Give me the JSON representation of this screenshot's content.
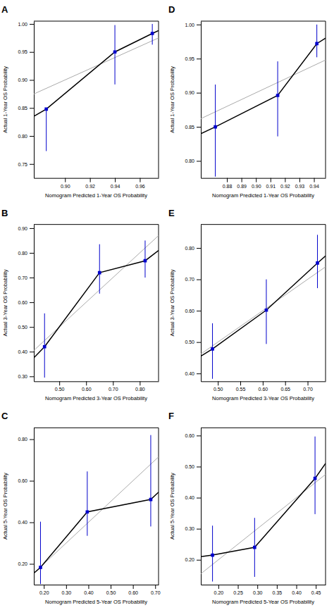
{
  "chart_data": [
    {
      "type": "line",
      "title": "A",
      "xlabel": "Nomogram Predicted 1-Year OS Probability",
      "ylabel": "Actual 1-Year OS Probability",
      "grid": false,
      "xlim": [
        0.875,
        0.975
      ],
      "ylim": [
        0.725,
        1.005
      ],
      "xticks": [
        {
          "value": 0.9,
          "label": "0.90"
        },
        {
          "value": 0.92,
          "label": "0.92"
        },
        {
          "value": 0.94,
          "label": "0.94"
        },
        {
          "value": 0.96,
          "label": "0.96"
        }
      ],
      "yticks": [
        {
          "value": 0.75,
          "label": "0.75"
        },
        {
          "value": 0.8,
          "label": "0.80"
        },
        {
          "value": 0.85,
          "label": "0.85"
        },
        {
          "value": 0.9,
          "label": "0.90"
        },
        {
          "value": 0.95,
          "label": "0.95"
        },
        {
          "value": 1.0,
          "label": "1.00"
        }
      ],
      "series": [
        {
          "type": "line",
          "color": "#AAAAAA",
          "x": [
            0.875,
            0.975
          ],
          "values": [
            0.875,
            0.975
          ]
        },
        {
          "type": "line",
          "color": "#000000",
          "x": [
            0.875,
            0.885,
            0.94,
            0.97,
            0.975
          ],
          "values": [
            0.835,
            0.848,
            0.95,
            0.983,
            0.988
          ]
        },
        {
          "type": "scatter",
          "color": "#0000CC",
          "marker": "square",
          "x": [
            0.885,
            0.94,
            0.97
          ],
          "values": [
            0.848,
            0.95,
            0.983
          ],
          "err_lo": [
            0.075,
            0.058,
            0.02
          ],
          "err_hi": [
            0.0,
            0.048,
            0.017
          ]
        }
      ]
    },
    {
      "type": "line",
      "title": "B",
      "xlabel": "Nomogram Predicted 3-Year OS Probability",
      "ylabel": "Actual 3-Year OS Probability",
      "grid": false,
      "xlim": [
        0.405,
        0.87
      ],
      "ylim": [
        0.28,
        0.915
      ],
      "xticks": [
        {
          "value": 0.5,
          "label": "0.50"
        },
        {
          "value": 0.6,
          "label": "0.60"
        },
        {
          "value": 0.7,
          "label": "0.70"
        },
        {
          "value": 0.8,
          "label": "0.80"
        }
      ],
      "yticks": [
        {
          "value": 0.3,
          "label": "0.30"
        },
        {
          "value": 0.4,
          "label": "0.40"
        },
        {
          "value": 0.5,
          "label": "0.50"
        },
        {
          "value": 0.6,
          "label": "0.60"
        },
        {
          "value": 0.7,
          "label": "0.70"
        },
        {
          "value": 0.8,
          "label": "0.80"
        },
        {
          "value": 0.9,
          "label": "0.90"
        }
      ],
      "series": [
        {
          "type": "line",
          "color": "#AAAAAA",
          "x": [
            0.405,
            0.87
          ],
          "values": [
            0.405,
            0.87
          ]
        },
        {
          "type": "line",
          "color": "#000000",
          "x": [
            0.405,
            0.445,
            0.65,
            0.82,
            0.87
          ],
          "values": [
            0.375,
            0.42,
            0.72,
            0.768,
            0.81
          ]
        },
        {
          "type": "scatter",
          "color": "#0000CC",
          "marker": "square",
          "x": [
            0.445,
            0.65,
            0.82
          ],
          "values": [
            0.42,
            0.72,
            0.768
          ],
          "err_lo": [
            0.125,
            0.085,
            0.068
          ],
          "err_hi": [
            0.135,
            0.115,
            0.082
          ]
        }
      ]
    },
    {
      "type": "line",
      "title": "C",
      "xlabel": "Nomogram Predicted 5-Year OS Probability",
      "ylabel": "Actual 5-Year OS Probability",
      "grid": false,
      "xlim": [
        0.155,
        0.715
      ],
      "ylim": [
        0.1,
        0.855
      ],
      "xticks": [
        {
          "value": 0.2,
          "label": "0.20"
        },
        {
          "value": 0.3,
          "label": "0.30"
        },
        {
          "value": 0.4,
          "label": "0.40"
        },
        {
          "value": 0.5,
          "label": "0.50"
        },
        {
          "value": 0.6,
          "label": "0.60"
        },
        {
          "value": 0.7,
          "label": "0.70"
        }
      ],
      "yticks": [
        {
          "value": 0.2,
          "label": "0.20"
        },
        {
          "value": 0.4,
          "label": "0.40"
        },
        {
          "value": 0.6,
          "label": "0.60"
        },
        {
          "value": 0.8,
          "label": "0.80"
        }
      ],
      "series": [
        {
          "type": "line",
          "color": "#AAAAAA",
          "x": [
            0.155,
            0.715
          ],
          "values": [
            0.155,
            0.715
          ]
        },
        {
          "type": "line",
          "color": "#000000",
          "x": [
            0.155,
            0.185,
            0.395,
            0.68,
            0.715
          ],
          "values": [
            0.155,
            0.183,
            0.45,
            0.51,
            0.545
          ]
        },
        {
          "type": "scatter",
          "color": "#0000CC",
          "marker": "square",
          "x": [
            0.185,
            0.395,
            0.68
          ],
          "values": [
            0.183,
            0.45,
            0.51
          ],
          "err_lo": [
            0.08,
            0.115,
            0.13
          ],
          "err_hi": [
            0.22,
            0.195,
            0.31
          ]
        }
      ]
    },
    {
      "type": "line",
      "title": "D",
      "xlabel": "Nomogram Predicted 1-Year OS Probability",
      "ylabel": "Actual 1-Year OS Probability",
      "grid": false,
      "xlim": [
        0.862,
        0.948
      ],
      "ylim": [
        0.775,
        1.005
      ],
      "xticks": [
        {
          "value": 0.88,
          "label": "0.88"
        },
        {
          "value": 0.89,
          "label": "0.89"
        },
        {
          "value": 0.9,
          "label": "0.90"
        },
        {
          "value": 0.91,
          "label": "0.91"
        },
        {
          "value": 0.92,
          "label": "0.92"
        },
        {
          "value": 0.93,
          "label": "0.93"
        },
        {
          "value": 0.94,
          "label": "0.94"
        }
      ],
      "yticks": [
        {
          "value": 0.8,
          "label": "0.80"
        },
        {
          "value": 0.85,
          "label": "0.85"
        },
        {
          "value": 0.9,
          "label": "0.90"
        },
        {
          "value": 0.95,
          "label": "0.95"
        },
        {
          "value": 1.0,
          "label": "1.00"
        }
      ],
      "series": [
        {
          "type": "line",
          "color": "#AAAAAA",
          "x": [
            0.862,
            0.948
          ],
          "values": [
            0.862,
            0.948
          ]
        },
        {
          "type": "line",
          "color": "#000000",
          "x": [
            0.862,
            0.872,
            0.915,
            0.942,
            0.948
          ],
          "values": [
            0.84,
            0.85,
            0.896,
            0.972,
            0.98
          ]
        },
        {
          "type": "scatter",
          "color": "#0000CC",
          "marker": "square",
          "x": [
            0.872,
            0.915,
            0.942
          ],
          "values": [
            0.85,
            0.896,
            0.972
          ],
          "err_lo": [
            0.073,
            0.06,
            0.02
          ],
          "err_hi": [
            0.062,
            0.05,
            0.028
          ]
        }
      ]
    },
    {
      "type": "line",
      "title": "E",
      "xlabel": "Nomogram Predicted 3-Year OS Probability",
      "ylabel": "Actual 3-Year OS Probability",
      "grid": false,
      "xlim": [
        0.462,
        0.74
      ],
      "ylim": [
        0.375,
        0.875
      ],
      "xticks": [
        {
          "value": 0.5,
          "label": "0.50"
        },
        {
          "value": 0.55,
          "label": "0.55"
        },
        {
          "value": 0.6,
          "label": "0.60"
        },
        {
          "value": 0.65,
          "label": "0.65"
        },
        {
          "value": 0.7,
          "label": "0.70"
        }
      ],
      "yticks": [
        {
          "value": 0.4,
          "label": "0.40"
        },
        {
          "value": 0.5,
          "label": "0.50"
        },
        {
          "value": 0.6,
          "label": "0.60"
        },
        {
          "value": 0.7,
          "label": "0.70"
        },
        {
          "value": 0.8,
          "label": "0.80"
        }
      ],
      "series": [
        {
          "type": "line",
          "color": "#AAAAAA",
          "x": [
            0.462,
            0.74
          ],
          "values": [
            0.462,
            0.74
          ]
        },
        {
          "type": "line",
          "color": "#000000",
          "x": [
            0.462,
            0.488,
            0.608,
            0.722,
            0.74
          ],
          "values": [
            0.455,
            0.478,
            0.602,
            0.752,
            0.775
          ]
        },
        {
          "type": "scatter",
          "color": "#0000CC",
          "marker": "square",
          "x": [
            0.488,
            0.608,
            0.722
          ],
          "values": [
            0.478,
            0.602,
            0.752
          ],
          "err_lo": [
            0.095,
            0.108,
            0.08
          ],
          "err_hi": [
            0.082,
            0.098,
            0.09
          ]
        }
      ]
    },
    {
      "type": "line",
      "title": "F",
      "xlabel": "Nomogram Predicted 5-Year OS Probability",
      "ylabel": "Actual 5-Year OS Probability",
      "grid": false,
      "xlim": [
        0.155,
        0.475
      ],
      "ylim": [
        0.12,
        0.625
      ],
      "xticks": [
        {
          "value": 0.2,
          "label": "0.20"
        },
        {
          "value": 0.25,
          "label": "0.25"
        },
        {
          "value": 0.3,
          "label": "0.30"
        },
        {
          "value": 0.35,
          "label": "0.35"
        },
        {
          "value": 0.4,
          "label": "0.40"
        },
        {
          "value": 0.45,
          "label": "0.45"
        }
      ],
      "yticks": [
        {
          "value": 0.2,
          "label": "0.20"
        },
        {
          "value": 0.3,
          "label": "0.30"
        },
        {
          "value": 0.4,
          "label": "0.40"
        },
        {
          "value": 0.5,
          "label": "0.50"
        },
        {
          "value": 0.6,
          "label": "0.60"
        }
      ],
      "series": [
        {
          "type": "line",
          "color": "#AAAAAA",
          "x": [
            0.155,
            0.475
          ],
          "values": [
            0.155,
            0.475
          ]
        },
        {
          "type": "line",
          "color": "#000000",
          "x": [
            0.155,
            0.185,
            0.293,
            0.448,
            0.475
          ],
          "values": [
            0.21,
            0.215,
            0.24,
            0.462,
            0.51
          ]
        },
        {
          "type": "scatter",
          "color": "#0000CC",
          "marker": "square",
          "x": [
            0.185,
            0.293,
            0.448
          ],
          "values": [
            0.215,
            0.24,
            0.462
          ],
          "err_lo": [
            0.085,
            0.095,
            0.115
          ],
          "err_hi": [
            0.095,
            0.095,
            0.135
          ]
        }
      ]
    }
  ]
}
